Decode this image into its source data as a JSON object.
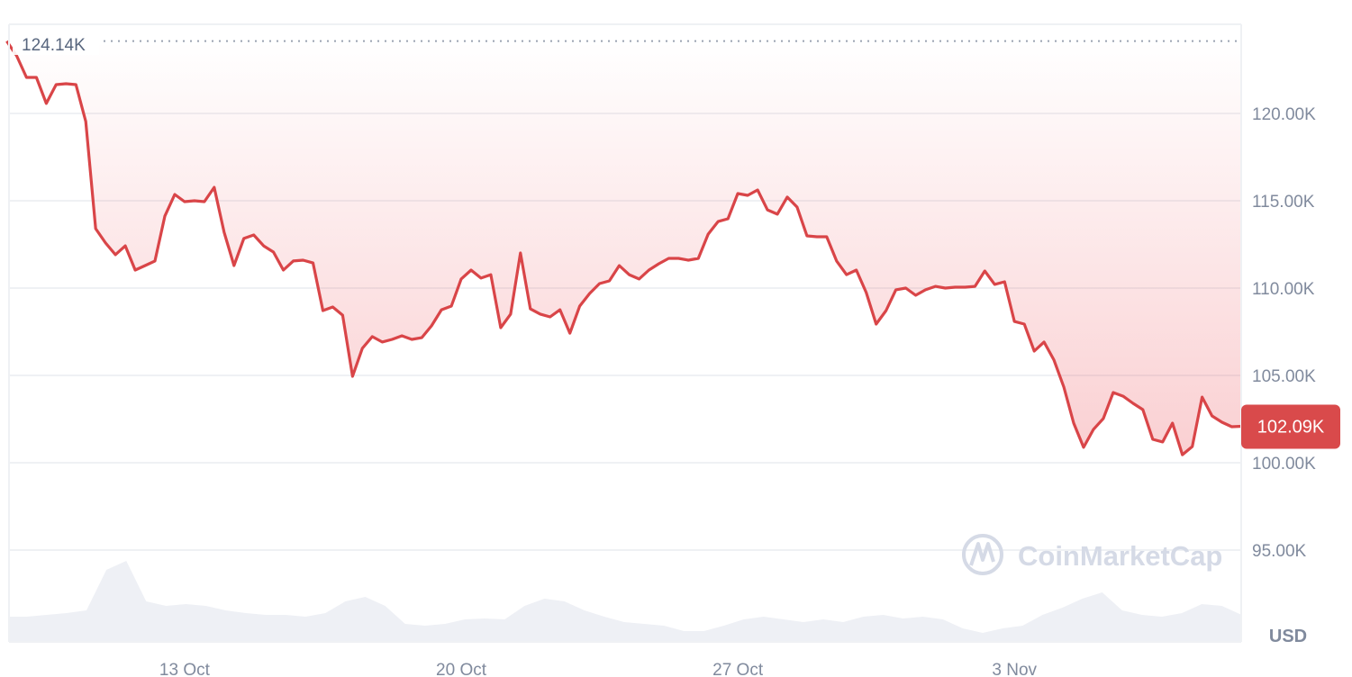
{
  "chart_data": {
    "type": "line",
    "title": "",
    "xlabel": "",
    "ylabel": "",
    "unit_label": "USD",
    "y_unit": "K",
    "ylim": [
      91.5,
      125.5
    ],
    "y_ticks": [
      {
        "value": 120,
        "label": "120.00K"
      },
      {
        "value": 115,
        "label": "115.00K"
      },
      {
        "value": 110,
        "label": "110.00K"
      },
      {
        "value": 105,
        "label": "105.00K"
      },
      {
        "value": 100,
        "label": "100.00K"
      },
      {
        "value": 95,
        "label": "95.00K"
      }
    ],
    "x_ticks": [
      {
        "value": "13 Oct 00:00",
        "label": "13 Oct"
      },
      {
        "value": "20 Oct 00:00",
        "label": "20 Oct"
      },
      {
        "value": "27 Oct 00:00",
        "label": "27 Oct"
      },
      {
        "value": "3 Nov 00:00",
        "label": "3 Nov"
      }
    ],
    "reference_line": {
      "value": 124.14,
      "label": "124.14K"
    },
    "current_value": {
      "value": 102.09,
      "label": "102.09K"
    },
    "grid": true,
    "colors": {
      "line": "#d94548",
      "fill": "#ea3943",
      "badge": "#d94a4b",
      "volume": "#eef0f5",
      "watermark": "#d5dae6"
    },
    "watermark": "CoinMarketCap",
    "x": [
      "8 Oct 12:00",
      "8 Oct 18:00",
      "9 Oct 00:00",
      "9 Oct 06:00",
      "9 Oct 12:00",
      "9 Oct 18:00",
      "10 Oct 00:00",
      "10 Oct 06:00",
      "10 Oct 12:00",
      "10 Oct 18:00",
      "11 Oct 00:00",
      "11 Oct 06:00",
      "11 Oct 12:00",
      "11 Oct 18:00",
      "12 Oct 00:00",
      "12 Oct 06:00",
      "12 Oct 12:00",
      "12 Oct 18:00",
      "13 Oct 00:00",
      "13 Oct 06:00",
      "13 Oct 12:00",
      "13 Oct 18:00",
      "14 Oct 00:00",
      "14 Oct 06:00",
      "14 Oct 12:00",
      "14 Oct 18:00",
      "15 Oct 00:00",
      "15 Oct 06:00",
      "15 Oct 12:00",
      "15 Oct 18:00",
      "16 Oct 00:00",
      "16 Oct 06:00",
      "16 Oct 12:00",
      "16 Oct 18:00",
      "17 Oct 00:00",
      "17 Oct 06:00",
      "17 Oct 12:00",
      "17 Oct 18:00",
      "18 Oct 00:00",
      "18 Oct 06:00",
      "18 Oct 12:00",
      "18 Oct 18:00",
      "19 Oct 00:00",
      "19 Oct 06:00",
      "19 Oct 12:00",
      "19 Oct 18:00",
      "20 Oct 00:00",
      "20 Oct 06:00",
      "20 Oct 12:00",
      "20 Oct 18:00",
      "21 Oct 00:00",
      "21 Oct 06:00",
      "21 Oct 12:00",
      "21 Oct 18:00",
      "22 Oct 00:00",
      "22 Oct 06:00",
      "22 Oct 12:00",
      "22 Oct 18:00",
      "23 Oct 00:00",
      "23 Oct 06:00",
      "23 Oct 12:00",
      "23 Oct 18:00",
      "24 Oct 00:00",
      "24 Oct 06:00",
      "24 Oct 12:00",
      "24 Oct 18:00",
      "25 Oct 00:00",
      "25 Oct 06:00",
      "25 Oct 12:00",
      "25 Oct 18:00",
      "26 Oct 00:00",
      "26 Oct 06:00",
      "26 Oct 12:00",
      "26 Oct 18:00",
      "27 Oct 00:00",
      "27 Oct 06:00",
      "27 Oct 12:00",
      "27 Oct 18:00",
      "28 Oct 00:00",
      "28 Oct 06:00",
      "28 Oct 12:00",
      "28 Oct 18:00",
      "29 Oct 00:00",
      "29 Oct 06:00",
      "29 Oct 12:00",
      "29 Oct 18:00",
      "30 Oct 00:00",
      "30 Oct 06:00",
      "30 Oct 12:00",
      "30 Oct 18:00",
      "31 Oct 00:00",
      "31 Oct 06:00",
      "31 Oct 12:00",
      "31 Oct 18:00",
      "1 Nov 00:00",
      "1 Nov 06:00",
      "1 Nov 12:00",
      "1 Nov 18:00",
      "2 Nov 00:00",
      "2 Nov 06:00",
      "2 Nov 12:00",
      "2 Nov 18:00",
      "3 Nov 00:00",
      "3 Nov 06:00",
      "3 Nov 12:00",
      "3 Nov 18:00",
      "4 Nov 00:00",
      "4 Nov 06:00",
      "4 Nov 12:00",
      "4 Nov 18:00",
      "5 Nov 00:00",
      "5 Nov 06:00",
      "5 Nov 12:00",
      "5 Nov 18:00",
      "6 Nov 00:00",
      "6 Nov 06:00",
      "6 Nov 12:00",
      "6 Nov 18:00",
      "7 Nov 00:00",
      "7 Nov 06:00",
      "7 Nov 12:00",
      "7 Nov 18:00",
      "8 Nov 00:00",
      "8 Nov 06:00",
      "8 Nov 12:00",
      "8 Nov 18:00"
    ],
    "values": [
      124.14,
      123.3,
      122.06,
      122.06,
      120.57,
      121.65,
      121.7,
      121.65,
      119.54,
      113.4,
      112.58,
      111.91,
      112.42,
      111.03,
      111.29,
      111.55,
      114.12,
      115.36,
      114.95,
      115.0,
      114.95,
      115.77,
      113.2,
      111.29,
      112.84,
      113.04,
      112.42,
      112.06,
      111.03,
      111.55,
      111.6,
      111.44,
      108.71,
      108.92,
      108.45,
      104.95,
      106.55,
      107.22,
      106.91,
      107.06,
      107.27,
      107.06,
      107.16,
      107.84,
      108.76,
      108.97,
      110.52,
      111.03,
      110.57,
      110.77,
      107.73,
      108.51,
      112.01,
      108.81,
      108.51,
      108.35,
      108.76,
      107.42,
      108.97,
      109.69,
      110.26,
      110.41,
      111.29,
      110.77,
      110.52,
      111.03,
      111.39,
      111.7,
      111.7,
      111.6,
      111.7,
      113.09,
      113.81,
      113.97,
      115.41,
      115.31,
      115.62,
      114.48,
      114.23,
      115.21,
      114.64,
      112.99,
      112.94,
      112.94,
      111.55,
      110.77,
      111.03,
      109.74,
      107.94,
      108.71,
      109.9,
      110.0,
      109.59,
      109.9,
      110.1,
      110.0,
      110.05,
      110.05,
      110.1,
      110.98,
      110.21,
      110.36,
      108.09,
      107.94,
      106.39,
      106.91,
      105.88,
      104.33,
      102.27,
      100.88,
      101.91,
      102.53,
      104.02,
      103.81,
      103.4,
      103.04,
      101.34,
      101.19,
      102.27,
      100.46,
      100.93,
      103.76,
      102.68,
      102.32,
      102.06,
      102.09
    ],
    "volume_relative": [
      28,
      28,
      30,
      32,
      35,
      80,
      90,
      45,
      40,
      42,
      40,
      35,
      32,
      30,
      30,
      28,
      32,
      45,
      50,
      40,
      20,
      18,
      20,
      25,
      26,
      25,
      40,
      48,
      45,
      35,
      28,
      22,
      20,
      18,
      12,
      12,
      18,
      25,
      28,
      25,
      22,
      25,
      22,
      28,
      30,
      26,
      28,
      25,
      15,
      10,
      15,
      18,
      30,
      38,
      48,
      55,
      35,
      30,
      28,
      32,
      42,
      40,
      30
    ]
  }
}
